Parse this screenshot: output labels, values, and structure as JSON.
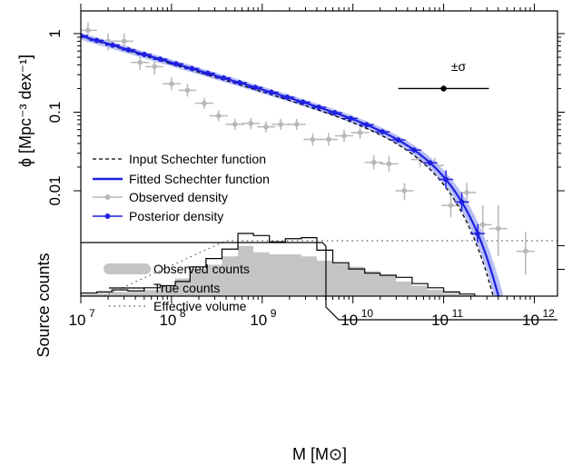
{
  "chart_data": {
    "type": "scatter",
    "panels": {
      "top": {
        "yscale": "log",
        "ylim": [
          0.0005,
          2
        ],
        "ylabel": "ϕ [Mpc⁻³ dex⁻¹]",
        "yticks": [
          {
            "value": 1,
            "label": "1"
          },
          {
            "value": 0.1,
            "label": "0.1"
          },
          {
            "value": 0.01,
            "label": "0.01"
          }
        ],
        "errorbar_annotation": {
          "label": "±σ",
          "x": 100000000000.0,
          "y": 0.2,
          "xerr_dex": 0.5
        },
        "input_schechter": {
          "phi_star": 0.0166,
          "log_m_star": 10.95,
          "alpha": -1.35
        },
        "fitted_schechter": {
          "phi_star": 0.0178,
          "log_m_star": 11.0,
          "alpha": -1.34
        },
        "observed_density": [
          {
            "x": 12000000.0,
            "y": 1.1,
            "yerr_lo": 0.15,
            "yerr_hi": 0.1
          },
          {
            "x": 20000000.0,
            "y": 0.8,
            "yerr_lo": 0.12,
            "yerr_hi": 0.1
          },
          {
            "x": 30000000.0,
            "y": 0.8,
            "yerr_lo": 0.12,
            "yerr_hi": 0.1
          },
          {
            "x": 45000000.0,
            "y": 0.43,
            "yerr_lo": 0.1,
            "yerr_hi": 0.1
          },
          {
            "x": 65000000.0,
            "y": 0.38,
            "yerr_lo": 0.1,
            "yerr_hi": 0.1
          },
          {
            "x": 100000000.0,
            "y": 0.23,
            "yerr_lo": 0.08,
            "yerr_hi": 0.08
          },
          {
            "x": 150000000.0,
            "y": 0.19,
            "yerr_lo": 0.08,
            "yerr_hi": 0.08
          },
          {
            "x": 230000000.0,
            "y": 0.13,
            "yerr_lo": 0.07,
            "yerr_hi": 0.07
          },
          {
            "x": 330000000.0,
            "y": 0.09,
            "yerr_lo": 0.07,
            "yerr_hi": 0.07
          },
          {
            "x": 500000000.0,
            "y": 0.07,
            "yerr_lo": 0.07,
            "yerr_hi": 0.07
          },
          {
            "x": 750000000.0,
            "y": 0.072,
            "yerr_lo": 0.07,
            "yerr_hi": 0.07
          },
          {
            "x": 1100000000.0,
            "y": 0.065,
            "yerr_lo": 0.07,
            "yerr_hi": 0.07
          },
          {
            "x": 1600000000.0,
            "y": 0.07,
            "yerr_lo": 0.07,
            "yerr_hi": 0.07
          },
          {
            "x": 2400000000.0,
            "y": 0.07,
            "yerr_lo": 0.07,
            "yerr_hi": 0.07
          },
          {
            "x": 3600000000.0,
            "y": 0.045,
            "yerr_lo": 0.08,
            "yerr_hi": 0.08
          },
          {
            "x": 5400000000.0,
            "y": 0.045,
            "yerr_lo": 0.08,
            "yerr_hi": 0.08
          },
          {
            "x": 8000000000.0,
            "y": 0.05,
            "yerr_lo": 0.08,
            "yerr_hi": 0.08
          },
          {
            "x": 12000000000.0,
            "y": 0.055,
            "yerr_lo": 0.08,
            "yerr_hi": 0.08
          },
          {
            "x": 17000000000.0,
            "y": 0.023,
            "yerr_lo": 0.09,
            "yerr_hi": 0.09
          },
          {
            "x": 25000000000.0,
            "y": 0.022,
            "yerr_lo": 0.1,
            "yerr_hi": 0.1
          },
          {
            "x": 37000000000.0,
            "y": 0.01,
            "yerr_lo": 0.12,
            "yerr_hi": 0.1
          },
          {
            "x": 55000000000.0,
            "y": 0.025,
            "yerr_lo": 0.1,
            "yerr_hi": 0.1
          },
          {
            "x": 80000000000.0,
            "y": 0.021,
            "yerr_lo": 0.12,
            "yerr_hi": 0.1
          },
          {
            "x": 120000000000.0,
            "y": 0.0065,
            "yerr_lo": 0.15,
            "yerr_hi": 0.12
          },
          {
            "x": 180000000000.0,
            "y": 0.0095,
            "yerr_lo": 0.15,
            "yerr_hi": 0.12
          },
          {
            "x": 270000000000.0,
            "y": 0.0037,
            "yerr_lo": 0.3,
            "yerr_hi": 0.25
          },
          {
            "x": 400000000000.0,
            "y": 0.0033,
            "yerr_lo": 0.35,
            "yerr_hi": 0.3
          },
          {
            "x": 800000000000.0,
            "y": 0.0017,
            "yerr_lo": 0.3,
            "yerr_hi": 0.25
          }
        ]
      },
      "bottom": {
        "ylabel": "Source counts",
        "true_counts_x": [
          10000000.0,
          15000000.0,
          22000000.0,
          33000000.0,
          50000000.0,
          75000000.0,
          110000000.0,
          160000000.0,
          240000000.0,
          360000000.0,
          540000000.0,
          800000000.0,
          1200000000.0,
          1800000000.0,
          2700000000.0,
          4000000000.0,
          6000000000.0,
          9000000000.0,
          13500000000.0,
          20000000000.0,
          30000000000.0,
          45000000000.0,
          67000000000.0,
          100000000000.0,
          150000000000.0,
          220000000000.0
        ],
        "true_counts": [
          3,
          4,
          6,
          5,
          8,
          10,
          14,
          28,
          36,
          45,
          60,
          58,
          52,
          55,
          56,
          44,
          32,
          26,
          22,
          20,
          18,
          12,
          8,
          4,
          2
        ],
        "observed_counts": [
          2,
          3,
          4,
          4,
          6,
          9,
          17,
          26,
          30,
          38,
          48,
          42,
          40,
          40,
          38,
          34,
          32,
          28,
          24,
          20,
          14,
          10,
          6,
          3,
          1
        ],
        "effective_volume_step_x": 400000000.0
      }
    },
    "xscale": "log",
    "xlim": [
      10000000.0,
      1800000000000.0
    ],
    "xlabel": "M [M⊙]",
    "xticks": [
      {
        "value": 10000000.0,
        "base": "10",
        "exp": "7"
      },
      {
        "value": 100000000.0,
        "base": "10",
        "exp": "8"
      },
      {
        "value": 1000000000.0,
        "base": "10",
        "exp": "9"
      },
      {
        "value": 10000000000.0,
        "base": "10",
        "exp": "10"
      },
      {
        "value": 100000000000.0,
        "base": "10",
        "exp": "11"
      },
      {
        "value": 1000000000000.0,
        "base": "10",
        "exp": "12"
      }
    ],
    "legend_top": [
      {
        "label": "Input Schechter function",
        "style": "dashed",
        "color": "#000000"
      },
      {
        "label": "Fitted Schechter function",
        "style": "solid",
        "color": "#1f1fe0"
      },
      {
        "label": "Observed density",
        "style": "point",
        "color": "#b8b8b8"
      },
      {
        "label": "Posterior density",
        "style": "point",
        "color": "#1f1fe0"
      }
    ],
    "legend_bottom": [
      {
        "label": "Observed counts",
        "style": "thick",
        "color": "#c4c4c4"
      },
      {
        "label": "True counts",
        "style": "solid",
        "color": "#000000"
      },
      {
        "label": "Effective volume",
        "style": "dotted",
        "color": "#555555"
      }
    ],
    "colors": {
      "blue": "#1f1fe0",
      "blue_band": "#aab4f5",
      "gray_points": "#b8b8b8",
      "gray_fill": "#c4c4c4"
    }
  }
}
